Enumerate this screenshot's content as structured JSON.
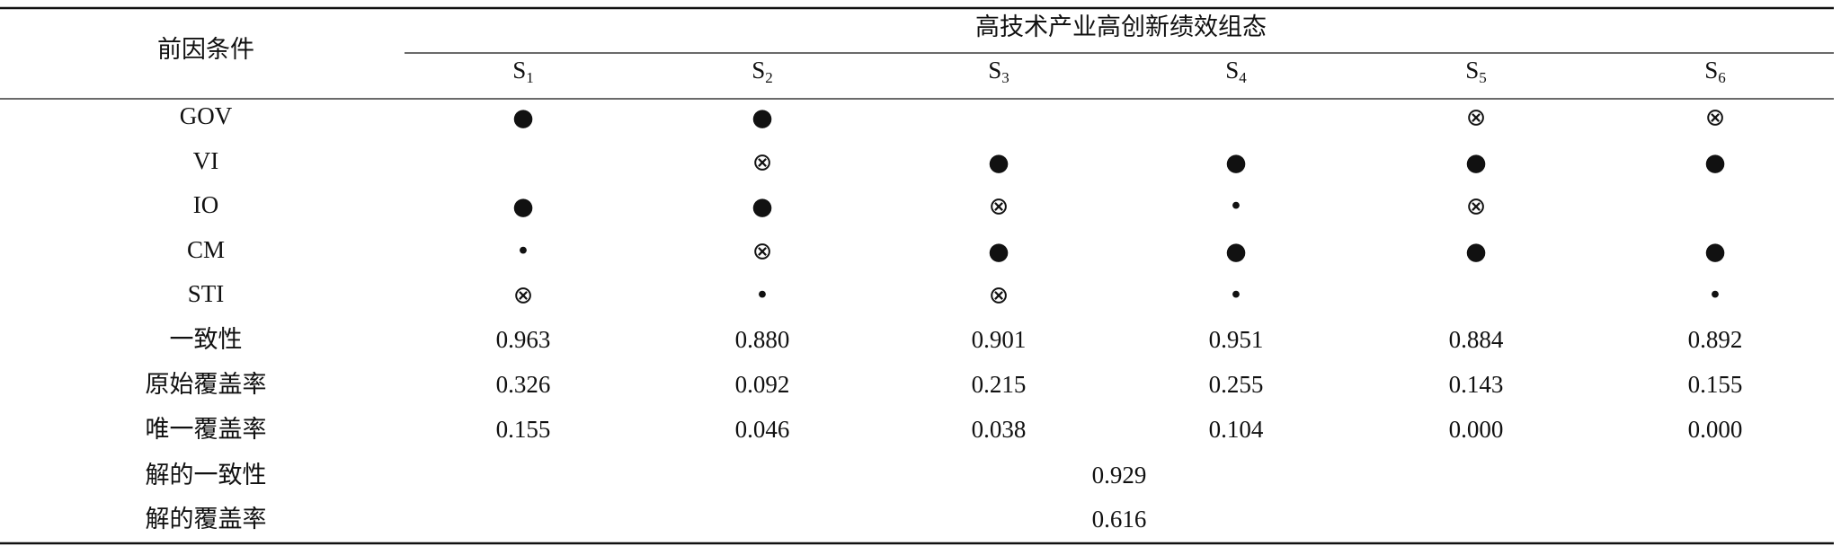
{
  "header": {
    "condition": "前因条件",
    "title": "高技术产业高创新绩效组态",
    "columns": [
      {
        "name": "S",
        "sub": "1"
      },
      {
        "name": "S",
        "sub": "2"
      },
      {
        "name": "S",
        "sub": "3"
      },
      {
        "name": "S",
        "sub": "4"
      },
      {
        "name": "S",
        "sub": "5"
      },
      {
        "name": "S",
        "sub": "6"
      }
    ]
  },
  "rows": [
    {
      "label": "GOV",
      "cells": [
        "●",
        "●",
        null,
        null,
        "⊗",
        "⊗"
      ]
    },
    {
      "label": "VI",
      "cells": [
        null,
        "⊗",
        "●",
        "●",
        "●",
        "●"
      ]
    },
    {
      "label": "IO",
      "cells": [
        "●",
        "●",
        "⊗",
        "•",
        "⊗",
        null
      ]
    },
    {
      "label": "CM",
      "cells": [
        "•",
        "⊗",
        "●",
        "●",
        "●",
        "●"
      ]
    },
    {
      "label": "STI",
      "cells": [
        "⊗",
        "•",
        "⊗",
        "•",
        null,
        "•"
      ]
    },
    {
      "label": "一致性",
      "cells": [
        "0.963",
        "0.880",
        "0.901",
        "0.951",
        "0.884",
        "0.892"
      ]
    },
    {
      "label": "原始覆盖率",
      "cells": [
        "0.326",
        "0.092",
        "0.215",
        "0.255",
        "0.143",
        "0.155"
      ]
    },
    {
      "label": "唯一覆盖率",
      "cells": [
        "0.155",
        "0.046",
        "0.038",
        "0.104",
        "0.000",
        "0.000"
      ]
    }
  ],
  "solution": [
    {
      "label": "解的一致性",
      "value": "0.929"
    },
    {
      "label": "解的覆盖率",
      "value": "0.616"
    }
  ]
}
